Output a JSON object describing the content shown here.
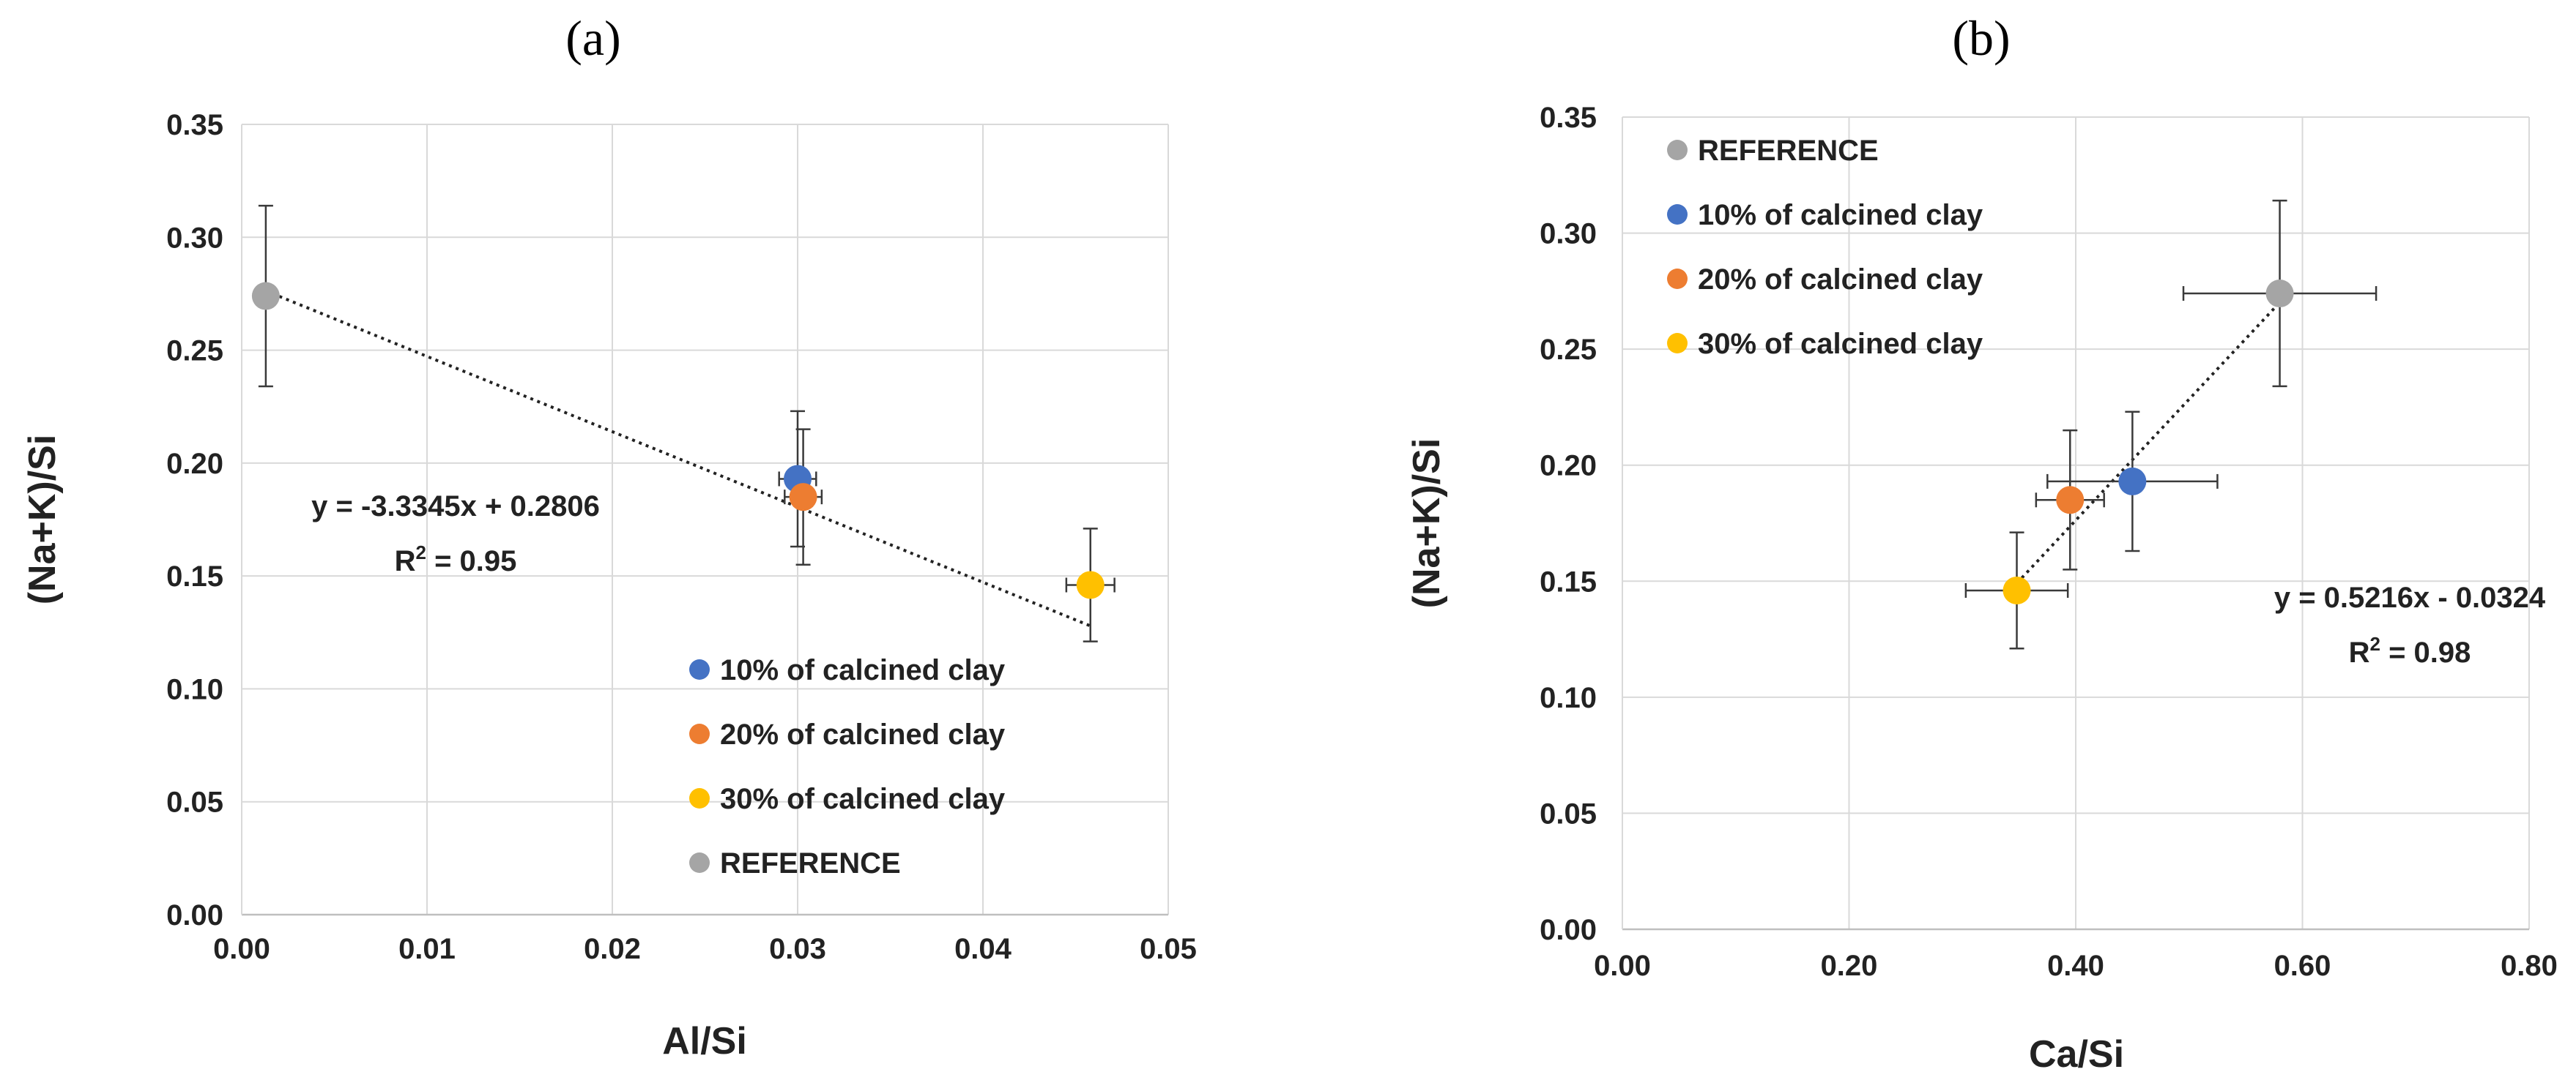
{
  "chart_data": [
    {
      "type": "scatter",
      "panel_label": "(a)",
      "title": "",
      "xlabel": "Al/Si",
      "ylabel": "(Na+K)/Si",
      "xlim": [
        0,
        0.05
      ],
      "ylim": [
        0,
        0.35
      ],
      "xticks": [
        "0.00",
        "0.01",
        "0.02",
        "0.03",
        "0.04",
        "0.05"
      ],
      "yticks": [
        "0.00",
        "0.05",
        "0.10",
        "0.15",
        "0.20",
        "0.25",
        "0.30",
        "0.35"
      ],
      "grid": true,
      "legend_position": "bottom-right",
      "series": [
        {
          "name": "10% of calcined clay",
          "color": "#4472C4",
          "x": 0.03,
          "y": 0.193,
          "xerr": 0.001,
          "yerr": 0.03
        },
        {
          "name": "20% of calcined clay",
          "color": "#ED7D31",
          "x": 0.0303,
          "y": 0.185,
          "xerr": 0.001,
          "yerr": 0.03
        },
        {
          "name": "30% of calcined clay",
          "color": "#FFC000",
          "x": 0.0458,
          "y": 0.146,
          "xerr": 0.0013,
          "yerr": 0.025
        },
        {
          "name": "REFERENCE",
          "color": "#A5A5A5",
          "x": 0.0013,
          "y": 0.274,
          "xerr": 0,
          "yerr": 0.04
        }
      ],
      "trendline": {
        "slope": -3.3345,
        "intercept": 0.2806,
        "x_range": [
          0.0013,
          0.0458
        ]
      },
      "equation_label": "y = -3.3345x + 0.2806",
      "r2_prefix": "R",
      "r2_exp": "2",
      "r2_value": " = 0.95"
    },
    {
      "type": "scatter",
      "panel_label": "(b)",
      "title": "",
      "xlabel": "Ca/Si",
      "ylabel": "(Na+K)/Si",
      "xlim": [
        0,
        0.8
      ],
      "ylim": [
        0,
        0.35
      ],
      "xticks": [
        "0.00",
        "0.20",
        "0.40",
        "0.60",
        "0.80"
      ],
      "yticks": [
        "0.00",
        "0.05",
        "0.10",
        "0.15",
        "0.20",
        "0.25",
        "0.30",
        "0.35"
      ],
      "grid": true,
      "legend_position": "top-left",
      "series": [
        {
          "name": "REFERENCE",
          "color": "#A5A5A5",
          "x": 0.58,
          "y": 0.274,
          "xerr": 0.085,
          "yerr": 0.04
        },
        {
          "name": "10% of calcined clay",
          "color": "#4472C4",
          "x": 0.45,
          "y": 0.193,
          "xerr": 0.075,
          "yerr": 0.03
        },
        {
          "name": "20% of calcined clay",
          "color": "#ED7D31",
          "x": 0.395,
          "y": 0.185,
          "xerr": 0.03,
          "yerr": 0.03
        },
        {
          "name": "30% of calcined clay",
          "color": "#FFC000",
          "x": 0.348,
          "y": 0.146,
          "xerr": 0.045,
          "yerr": 0.025
        }
      ],
      "trendline": {
        "slope": 0.5216,
        "intercept": -0.0324,
        "x_range": [
          0.348,
          0.58
        ]
      },
      "equation_label": "y = 0.5216x - 0.0324",
      "r2_prefix": "R",
      "r2_exp": "2",
      "r2_value": " = 0.98"
    }
  ]
}
